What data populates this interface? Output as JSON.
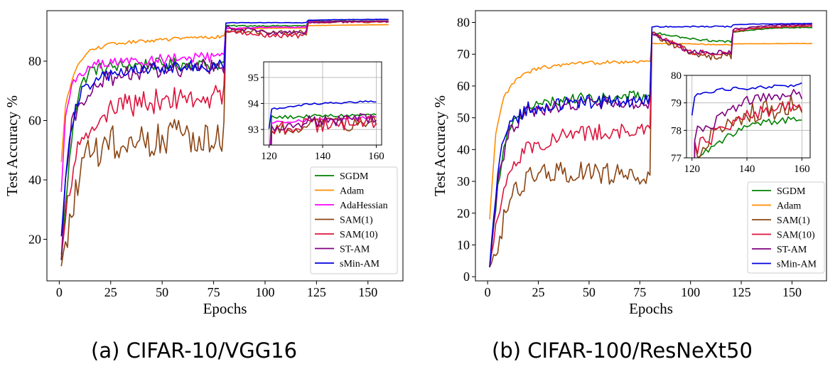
{
  "chart_data": [
    {
      "type": "line",
      "caption": "(a) CIFAR-10/VGG16",
      "xlabel": "Epochs",
      "ylabel": "Test Accuracy %",
      "xlim": [
        -6,
        167
      ],
      "ylim": [
        6,
        97
      ],
      "xticks": [
        0,
        25,
        50,
        75,
        100,
        125,
        150
      ],
      "yticks": [
        20,
        40,
        60,
        80
      ],
      "grid": false,
      "legend_position": "lower-right",
      "series": [
        {
          "name": "SGDM",
          "color": "#008000",
          "key": [
            [
              1,
              13
            ],
            [
              4,
              40
            ],
            [
              7,
              62
            ],
            [
              10,
              72
            ],
            [
              15,
              78
            ],
            [
              25,
              79
            ],
            [
              40,
              80
            ],
            [
              60,
              80
            ],
            [
              79,
              80
            ],
            [
              80,
              80
            ],
            [
              81,
              92
            ],
            [
              100,
              92
            ],
            [
              120,
              92
            ],
            [
              121,
              93.5
            ],
            [
              160,
              93.6
            ]
          ],
          "noise": 3,
          "noise2": 0.3
        },
        {
          "name": "Adam",
          "color": "#ff8c00",
          "key": [
            [
              1,
              46
            ],
            [
              3,
              65
            ],
            [
              6,
              74
            ],
            [
              10,
              80
            ],
            [
              15,
              84
            ],
            [
              25,
              86
            ],
            [
              40,
              87
            ],
            [
              60,
              88
            ],
            [
              79,
              88.5
            ],
            [
              80,
              88.5
            ],
            [
              81,
              91
            ],
            [
              120,
              91.2
            ],
            [
              121,
              92
            ],
            [
              160,
              92.3
            ]
          ],
          "noise": 0.8,
          "noise2": 0.1
        },
        {
          "name": "AdaHessian",
          "color": "#ff00ff",
          "key": [
            [
              1,
              36
            ],
            [
              3,
              62
            ],
            [
              6,
              72
            ],
            [
              10,
              77
            ],
            [
              20,
              80
            ],
            [
              40,
              81
            ],
            [
              60,
              82
            ],
            [
              79,
              82
            ],
            [
              80,
              82
            ],
            [
              81,
              91
            ],
            [
              100,
              91.5
            ],
            [
              120,
              91.5
            ],
            [
              121,
              93.3
            ],
            [
              160,
              93.5
            ]
          ],
          "noise": 2.5,
          "noise2": 0.2
        },
        {
          "name": "SAM(1)",
          "color": "#8b4513",
          "key": [
            [
              1,
              11
            ],
            [
              5,
              28
            ],
            [
              10,
              45
            ],
            [
              15,
              52
            ],
            [
              25,
              55
            ],
            [
              50,
              58
            ],
            [
              79,
              58
            ],
            [
              80,
              58
            ],
            [
              81,
              91
            ],
            [
              100,
              90
            ],
            [
              120,
              90
            ],
            [
              121,
              93.2
            ],
            [
              160,
              93.4
            ]
          ],
          "noise": 9,
          "noise2": 1.2
        },
        {
          "name": "SAM(10)",
          "color": "#dc143c",
          "key": [
            [
              1,
              15
            ],
            [
              5,
              40
            ],
            [
              10,
              55
            ],
            [
              20,
              65
            ],
            [
              40,
              68
            ],
            [
              60,
              70
            ],
            [
              79,
              70
            ],
            [
              80,
              70
            ],
            [
              81,
              91
            ],
            [
              100,
              89
            ],
            [
              120,
              89
            ],
            [
              121,
              93.2
            ],
            [
              160,
              93.5
            ]
          ],
          "noise": 6,
          "noise2": 1.2
        },
        {
          "name": "ST-AM",
          "color": "#800080",
          "key": [
            [
              1,
              13
            ],
            [
              3,
              40
            ],
            [
              6,
              60
            ],
            [
              10,
              68
            ],
            [
              20,
              75
            ],
            [
              40,
              78
            ],
            [
              60,
              79
            ],
            [
              79,
              80
            ],
            [
              80,
              80
            ],
            [
              81,
              92
            ],
            [
              100,
              90
            ],
            [
              120,
              90
            ],
            [
              121,
              93.3
            ],
            [
              160,
              93.6
            ]
          ],
          "noise": 4,
          "noise2": 1
        },
        {
          "name": "sMin-AM",
          "color": "#0000dd",
          "key": [
            [
              1,
              21
            ],
            [
              4,
              50
            ],
            [
              8,
              66
            ],
            [
              12,
              72
            ],
            [
              20,
              76
            ],
            [
              40,
              78
            ],
            [
              60,
              79
            ],
            [
              79,
              80
            ],
            [
              80,
              80
            ],
            [
              81,
              93
            ],
            [
              100,
              93
            ],
            [
              120,
              93
            ],
            [
              121,
              93.8
            ],
            [
              135,
              94
            ],
            [
              160,
              94.1
            ]
          ],
          "noise": 3,
          "noise2": 0.15
        }
      ],
      "inset": {
        "xlim": [
          118,
          162
        ],
        "ylim": [
          92.4,
          95.6
        ],
        "xticks": [
          120,
          140,
          160
        ],
        "yticks": [
          93,
          94,
          95
        ],
        "grid": true
      }
    },
    {
      "type": "line",
      "caption": "(b) CIFAR-100/ResNeXt50",
      "xlabel": "Epochs",
      "ylabel": "Test Accuracy %",
      "xlim": [
        -6,
        167
      ],
      "ylim": [
        -1.3,
        83.7
      ],
      "xticks": [
        0,
        25,
        50,
        75,
        100,
        125,
        150
      ],
      "yticks": [
        0,
        10,
        20,
        30,
        40,
        50,
        60,
        70,
        80
      ],
      "grid": false,
      "legend_position": "lower-right",
      "series": [
        {
          "name": "SGDM",
          "color": "#008000",
          "key": [
            [
              1,
              3
            ],
            [
              5,
              30
            ],
            [
              10,
              48
            ],
            [
              20,
              54
            ],
            [
              40,
              57
            ],
            [
              60,
              57
            ],
            [
              79,
              58
            ],
            [
              80,
              58
            ],
            [
              81,
              77
            ],
            [
              100,
              75
            ],
            [
              120,
              74
            ],
            [
              121,
              77
            ],
            [
              140,
              78.3
            ],
            [
              160,
              78.5
            ]
          ],
          "noise": 2.5,
          "noise2": 0.5
        },
        {
          "name": "Adam",
          "color": "#ff8c00",
          "key": [
            [
              1,
              18
            ],
            [
              4,
              45
            ],
            [
              8,
              57
            ],
            [
              15,
              63
            ],
            [
              25,
              66
            ],
            [
              40,
              67
            ],
            [
              60,
              68
            ],
            [
              79,
              68
            ],
            [
              80,
              68
            ],
            [
              81,
              73.5
            ],
            [
              100,
              73.3
            ],
            [
              120,
              73
            ],
            [
              121,
              73.3
            ],
            [
              160,
              73.4
            ]
          ],
          "noise": 0.9,
          "noise2": 0.2
        },
        {
          "name": "SAM(1)",
          "color": "#8b4513",
          "key": [
            [
              1,
              3
            ],
            [
              5,
              12
            ],
            [
              10,
              25
            ],
            [
              20,
              33
            ],
            [
              40,
              35
            ],
            [
              60,
              34
            ],
            [
              79,
              33
            ],
            [
              80,
              33
            ],
            [
              81,
              77
            ],
            [
              100,
              71
            ],
            [
              110,
              70
            ],
            [
              120,
              70
            ],
            [
              121,
              77.5
            ],
            [
              140,
              78.8
            ],
            [
              160,
              79.2
            ]
          ],
          "noise": 5,
          "noise2": 1.8
        },
        {
          "name": "SAM(10)",
          "color": "#dc143c",
          "key": [
            [
              1,
              3
            ],
            [
              5,
              20
            ],
            [
              10,
              35
            ],
            [
              20,
              42
            ],
            [
              40,
              46
            ],
            [
              60,
              47
            ],
            [
              79,
              47
            ],
            [
              80,
              47
            ],
            [
              81,
              77
            ],
            [
              100,
              71
            ],
            [
              120,
              71
            ],
            [
              121,
              77.5
            ],
            [
              140,
              78.8
            ],
            [
              160,
              79.1
            ]
          ],
          "noise": 3.5,
          "noise2": 1.2
        },
        {
          "name": "ST-AM",
          "color": "#800080",
          "key": [
            [
              1,
              3
            ],
            [
              5,
              30
            ],
            [
              10,
              46
            ],
            [
              20,
              53
            ],
            [
              40,
              55
            ],
            [
              60,
              56
            ],
            [
              79,
              56
            ],
            [
              80,
              56
            ],
            [
              81,
              77
            ],
            [
              100,
              71
            ],
            [
              120,
              71
            ],
            [
              121,
              78
            ],
            [
              140,
              79.2
            ],
            [
              160,
              79.5
            ]
          ],
          "noise": 3,
          "noise2": 1
        },
        {
          "name": "sMin-AM",
          "color": "#0000dd",
          "key": [
            [
              1,
              3
            ],
            [
              5,
              35
            ],
            [
              10,
              49
            ],
            [
              20,
              54
            ],
            [
              40,
              56
            ],
            [
              60,
              56
            ],
            [
              79,
              57
            ],
            [
              80,
              57
            ],
            [
              81,
              78.7
            ],
            [
              100,
              78.8
            ],
            [
              120,
              78.8
            ],
            [
              121,
              79.3
            ],
            [
              130,
              79.5
            ],
            [
              160,
              79.7
            ]
          ],
          "noise": 3,
          "noise2": 0.25
        }
      ],
      "inset": {
        "xlim": [
          118,
          163
        ],
        "ylim": [
          77,
          80
        ],
        "xticks": [
          120,
          140,
          160
        ],
        "yticks": [
          77,
          78,
          79,
          80
        ],
        "grid": true
      }
    }
  ]
}
